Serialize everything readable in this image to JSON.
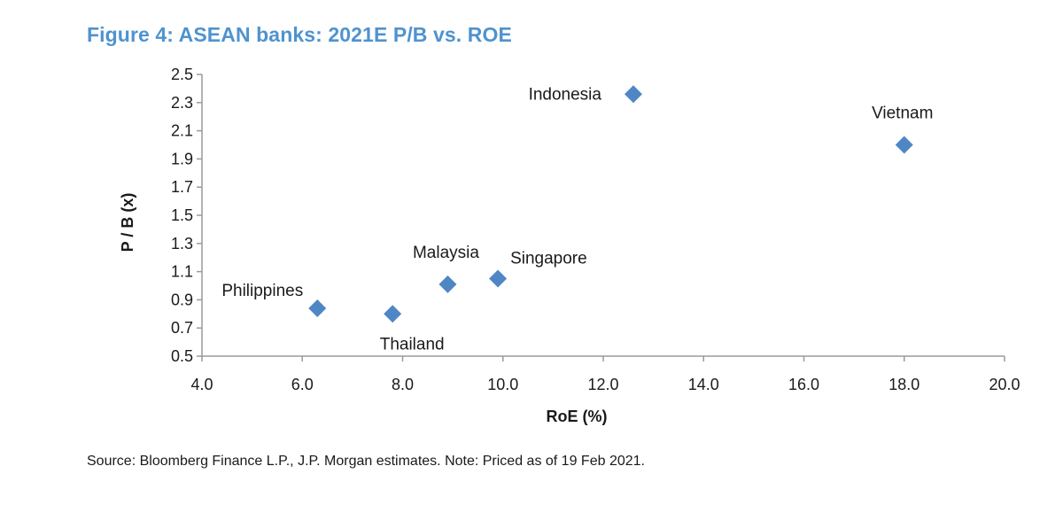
{
  "title": "Figure 4: ASEAN banks: 2021E P/B vs. ROE",
  "source": "Source: Bloomberg Finance L.P., J.P. Morgan estimates. Note: Priced as of 19 Feb 2021.",
  "colors": {
    "title": "#4f93cf",
    "marker": "#4f87c5",
    "axis": "#9a9a9a",
    "text": "#1a1a1a"
  },
  "chart_data": {
    "type": "scatter",
    "title": "Figure 4: ASEAN banks: 2021E P/B vs. ROE",
    "xlabel": "RoE (%)",
    "ylabel": "P / B (x)",
    "xlim": [
      4.0,
      20.0
    ],
    "ylim": [
      0.5,
      2.5
    ],
    "x_ticks": [
      "4.0",
      "6.0",
      "8.0",
      "10.0",
      "12.0",
      "14.0",
      "16.0",
      "18.0",
      "20.0"
    ],
    "y_ticks": [
      "0.5",
      "0.7",
      "0.9",
      "1.1",
      "1.3",
      "1.5",
      "1.7",
      "1.9",
      "2.1",
      "2.3",
      "2.5"
    ],
    "grid": false,
    "marker": "diamond",
    "points": [
      {
        "label": "Philippines",
        "x": 6.3,
        "y": 0.84,
        "label_pos": "upper-left"
      },
      {
        "label": "Thailand",
        "x": 7.8,
        "y": 0.8,
        "label_pos": "below"
      },
      {
        "label": "Malaysia",
        "x": 8.9,
        "y": 1.01,
        "label_pos": "above"
      },
      {
        "label": "Singapore",
        "x": 9.9,
        "y": 1.05,
        "label_pos": "upper-right"
      },
      {
        "label": "Indonesia",
        "x": 12.6,
        "y": 2.36,
        "label_pos": "left"
      },
      {
        "label": "Vietnam",
        "x": 18.0,
        "y": 2.0,
        "label_pos": "above"
      }
    ]
  }
}
